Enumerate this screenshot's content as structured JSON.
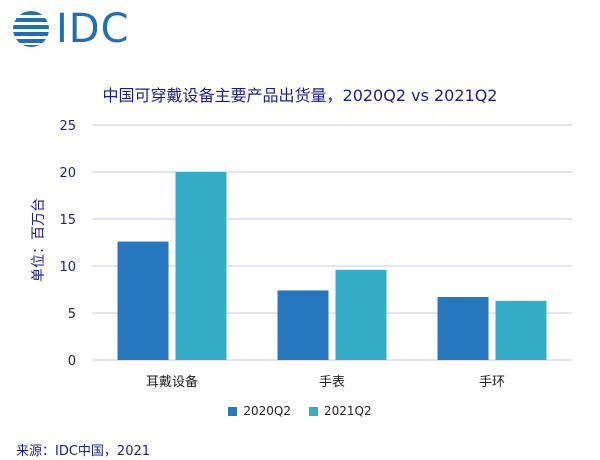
{
  "brand": {
    "logo_text": "IDC",
    "logo_color": "#1f6fb8"
  },
  "source_note": "来源：IDC中国，2021",
  "chart_data": {
    "type": "bar",
    "title": "中国可穿戴设备主要产品出货量，2020Q2 vs 2021Q2",
    "xlabel": "",
    "ylabel": "单位：百万台",
    "categories": [
      "耳戴设备",
      "手表",
      "手环"
    ],
    "series": [
      {
        "name": "2020Q2",
        "color": "#2577be",
        "values": [
          12.6,
          7.4,
          6.7
        ]
      },
      {
        "name": "2021Q2",
        "color": "#36adc8",
        "values": [
          20.0,
          9.6,
          6.3
        ]
      }
    ],
    "ylim": [
      0,
      25
    ],
    "yticks": [
      0,
      5,
      10,
      15,
      20,
      25
    ],
    "grid": true,
    "legend_position": "bottom"
  }
}
